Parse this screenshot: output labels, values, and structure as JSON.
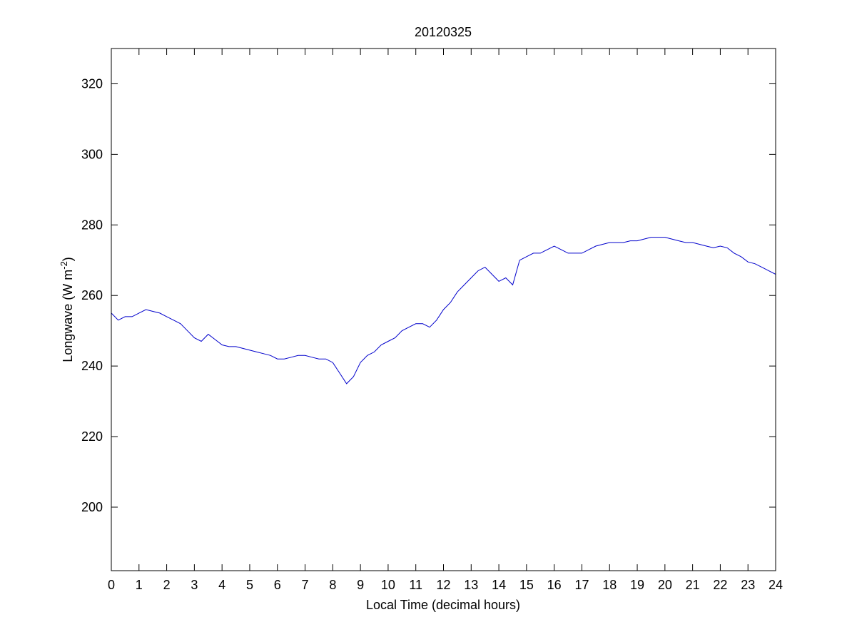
{
  "chart_data": {
    "type": "line",
    "title": "20120325",
    "xlabel": "Local Time (decimal hours)",
    "ylabel_main": "Longwave (W m",
    "ylabel_sup": "-2",
    "ylabel_close": ")",
    "xlim": [
      0,
      24
    ],
    "ylim": [
      182,
      330
    ],
    "xticks": [
      0,
      1,
      2,
      3,
      4,
      5,
      6,
      7,
      8,
      9,
      10,
      11,
      12,
      13,
      14,
      15,
      16,
      17,
      18,
      19,
      20,
      21,
      22,
      23,
      24
    ],
    "yticks": [
      200,
      220,
      240,
      260,
      280,
      300,
      320
    ],
    "grid": false,
    "legend": "none",
    "line_color": "#0000cc",
    "series": [
      {
        "x": [
          0,
          0.25,
          0.5,
          0.75,
          1,
          1.25,
          1.5,
          1.75,
          2,
          2.25,
          2.5,
          2.75,
          3,
          3.25,
          3.5,
          3.75,
          4,
          4.25,
          4.5,
          4.75,
          5,
          5.25,
          5.5,
          5.75,
          6,
          6.25,
          6.5,
          6.75,
          7,
          7.25,
          7.5,
          7.75,
          8,
          8.25,
          8.5,
          8.75,
          9,
          9.25,
          9.5,
          9.75,
          10,
          10.25,
          10.5,
          10.75,
          11,
          11.25,
          11.5,
          11.75,
          12,
          12.25,
          12.5,
          12.75,
          13,
          13.25,
          13.5,
          13.75,
          14,
          14.25,
          14.5,
          14.75,
          15,
          15.25,
          15.5,
          15.75,
          16,
          16.25,
          16.5,
          16.75,
          17,
          17.25,
          17.5,
          17.75,
          18,
          18.25,
          18.5,
          18.75,
          19,
          19.25,
          19.5,
          19.75,
          20,
          20.25,
          20.5,
          20.75,
          21,
          21.25,
          21.5,
          21.75,
          22,
          22.25,
          22.5,
          22.75,
          23,
          23.25,
          23.5,
          23.75,
          24
        ],
        "y": [
          255,
          253,
          254,
          254,
          255,
          256,
          255.5,
          255,
          254,
          253,
          252,
          250,
          248,
          247,
          249,
          247.5,
          246,
          245.5,
          245.5,
          245,
          244.5,
          244,
          243.5,
          243,
          242,
          242,
          242.5,
          243,
          243,
          242.5,
          242,
          242,
          241,
          238,
          235,
          237,
          241,
          243,
          244,
          246,
          247,
          248,
          250,
          251,
          252,
          252,
          251,
          253,
          256,
          258,
          261,
          263,
          265,
          267,
          268,
          266,
          264,
          265,
          263,
          270,
          271,
          272,
          272,
          273,
          274,
          273,
          272,
          272,
          272,
          273,
          274,
          274.5,
          275,
          275,
          275,
          275.5,
          275.5,
          276,
          276.5,
          276.5,
          276.5,
          276,
          275.5,
          275,
          275,
          274.5,
          274,
          273.5,
          274,
          273.5,
          272,
          271,
          269.5,
          269,
          268,
          267,
          266
        ]
      }
    ]
  }
}
